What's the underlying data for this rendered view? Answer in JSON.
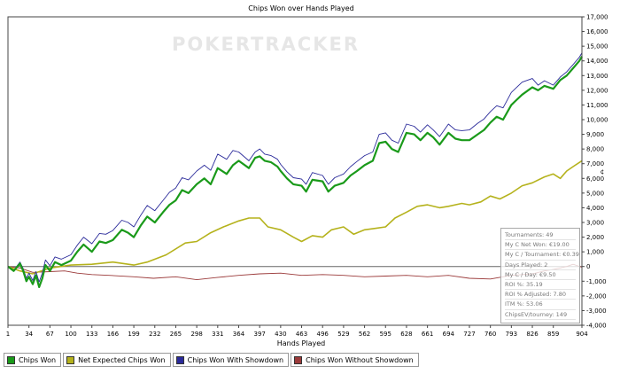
{
  "chart_data": {
    "type": "line",
    "title": "Chips Won over Hands Played",
    "xlabel": "Hands Played",
    "ylabel": "",
    "xlim": [
      1,
      904
    ],
    "ylim": [
      -4000,
      17000
    ],
    "x_ticks": [
      "1",
      "34",
      "67",
      "100",
      "133",
      "166",
      "199",
      "232",
      "265",
      "298",
      "331",
      "364",
      "397",
      "430",
      "463",
      "496",
      "529",
      "562",
      "595",
      "628",
      "661",
      "694",
      "727",
      "760",
      "793",
      "826",
      "859",
      "904"
    ],
    "y_ticks": [
      "-4,000",
      "-3,000",
      "-2,000",
      "-1,000",
      "0",
      "1,000",
      "2,000",
      "3,000",
      "4,000",
      "5,000",
      "6,000",
      "7,000",
      "8,000",
      "9,000",
      "10,000",
      "11,000",
      "12,000",
      "13,000",
      "14,000",
      "15,000",
      "16,000",
      "17,000"
    ],
    "y_tick_values": [
      -4000,
      -3000,
      -2000,
      -1000,
      0,
      1000,
      2000,
      3000,
      4000,
      5000,
      6000,
      7000,
      8000,
      9000,
      10000,
      11000,
      12000,
      13000,
      14000,
      15000,
      16000,
      17000
    ],
    "y_axis_symbol": "¢",
    "watermark": "POKERTRACKER",
    "legend_position": "bottom-left",
    "colors": {
      "chips_won": "#1a9a1a",
      "net_expected": "#b5b21c",
      "with_showdown": "#2a2a9a",
      "without_showdown": "#9b3a3a"
    },
    "series": [
      {
        "name": "Chips Won",
        "color": "#1a9a1a",
        "x": [
          1,
          10,
          20,
          25,
          30,
          34,
          40,
          45,
          50,
          55,
          60,
          67,
          75,
          85,
          100,
          110,
          120,
          133,
          145,
          155,
          166,
          180,
          190,
          199,
          210,
          220,
          232,
          245,
          255,
          265,
          275,
          285,
          298,
          310,
          320,
          331,
          345,
          355,
          364,
          380,
          390,
          397,
          405,
          415,
          425,
          430,
          440,
          450,
          463,
          470,
          480,
          496,
          505,
          515,
          529,
          540,
          550,
          562,
          575,
          585,
          595,
          605,
          615,
          628,
          640,
          650,
          661,
          670,
          680,
          694,
          705,
          715,
          727,
          740,
          750,
          760,
          770,
          780,
          793,
          800,
          810,
          826,
          835,
          845,
          859,
          870,
          880,
          890,
          900,
          904
        ],
        "values": [
          0,
          -300,
          200,
          -300,
          -1000,
          -700,
          -1200,
          -600,
          -1400,
          -800,
          100,
          -300,
          300,
          100,
          400,
          1000,
          1500,
          1000,
          1700,
          1600,
          1800,
          2500,
          2300,
          2000,
          2800,
          3400,
          3000,
          3700,
          4200,
          4500,
          5200,
          5000,
          5600,
          6000,
          5600,
          6700,
          6300,
          6900,
          7200,
          6700,
          7400,
          7500,
          7200,
          7100,
          6800,
          6500,
          6000,
          5600,
          5500,
          5100,
          5900,
          5800,
          5100,
          5500,
          5700,
          6200,
          6500,
          6900,
          7200,
          8400,
          8500,
          8000,
          7800,
          9100,
          9000,
          8600,
          9100,
          8800,
          8300,
          9100,
          8700,
          8600,
          8600,
          9000,
          9300,
          9800,
          10200,
          10000,
          11000,
          11300,
          11700,
          12200,
          12000,
          12300,
          12100,
          12700,
          13000,
          13500,
          14000,
          14300
        ]
      },
      {
        "name": "Net Expected Chips Won",
        "color": "#b5b21c",
        "x": [
          1,
          20,
          40,
          67,
          100,
          133,
          166,
          199,
          220,
          250,
          280,
          298,
          320,
          340,
          364,
          380,
          397,
          410,
          430,
          450,
          463,
          480,
          496,
          510,
          529,
          545,
          562,
          580,
          595,
          610,
          628,
          645,
          661,
          680,
          694,
          715,
          727,
          745,
          760,
          775,
          793,
          810,
          826,
          845,
          859,
          870,
          880,
          890,
          904
        ],
        "values": [
          0,
          -300,
          -500,
          -100,
          100,
          150,
          300,
          100,
          300,
          800,
          1600,
          1700,
          2300,
          2700,
          3100,
          3300,
          3300,
          2700,
          2500,
          2000,
          1700,
          2100,
          2000,
          2500,
          2700,
          2200,
          2500,
          2600,
          2700,
          3300,
          3700,
          4100,
          4200,
          4000,
          4100,
          4300,
          4200,
          4400,
          4800,
          4600,
          5000,
          5500,
          5700,
          6100,
          6300,
          6000,
          6500,
          6800,
          7200
        ]
      },
      {
        "name": "Chips Won With Showdown",
        "color": "#2a2a9a",
        "x": [
          1,
          10,
          20,
          25,
          30,
          34,
          40,
          45,
          50,
          55,
          60,
          67,
          75,
          85,
          100,
          110,
          120,
          133,
          145,
          155,
          166,
          180,
          190,
          199,
          210,
          220,
          232,
          245,
          255,
          265,
          275,
          285,
          298,
          310,
          320,
          331,
          345,
          355,
          364,
          380,
          390,
          397,
          405,
          415,
          425,
          430,
          440,
          450,
          463,
          470,
          480,
          496,
          505,
          515,
          529,
          540,
          550,
          562,
          575,
          585,
          595,
          605,
          615,
          628,
          640,
          650,
          661,
          670,
          680,
          694,
          705,
          715,
          727,
          740,
          750,
          760,
          770,
          780,
          793,
          800,
          810,
          826,
          835,
          845,
          859,
          870,
          880,
          890,
          900,
          904
        ],
        "values": [
          0,
          -250,
          300,
          -150,
          -800,
          -450,
          -950,
          -350,
          -1050,
          -450,
          450,
          50,
          650,
          500,
          800,
          1450,
          2000,
          1550,
          2250,
          2200,
          2450,
          3150,
          3000,
          2700,
          3500,
          4150,
          3800,
          4500,
          5050,
          5350,
          6050,
          5900,
          6500,
          6900,
          6550,
          7650,
          7300,
          7900,
          7800,
          7200,
          7800,
          8000,
          7650,
          7550,
          7300,
          6950,
          6450,
          6050,
          5950,
          5600,
          6400,
          6200,
          5600,
          6050,
          6300,
          6800,
          7150,
          7550,
          7800,
          9000,
          9100,
          8600,
          8400,
          9700,
          9550,
          9150,
          9650,
          9300,
          8850,
          9700,
          9300,
          9250,
          9300,
          9750,
          10050,
          10550,
          10950,
          10800,
          11850,
          12150,
          12550,
          12800,
          12350,
          12650,
          12350,
          12900,
          13250,
          13750,
          14250,
          14550
        ]
      },
      {
        "name": "Chips Won Without Showdown",
        "color": "#9b3a3a",
        "x": [
          1,
          20,
          40,
          67,
          90,
          110,
          133,
          160,
          199,
          230,
          265,
          298,
          330,
          364,
          397,
          430,
          463,
          496,
          529,
          562,
          595,
          628,
          661,
          694,
          727,
          760,
          780,
          793,
          810,
          826,
          845,
          859,
          870,
          880,
          890,
          904
        ],
        "values": [
          0,
          -100,
          -400,
          -350,
          -300,
          -450,
          -550,
          -600,
          -700,
          -800,
          -700,
          -900,
          -750,
          -600,
          -500,
          -450,
          -600,
          -550,
          -600,
          -700,
          -650,
          -600,
          -700,
          -600,
          -800,
          -850,
          -700,
          -600,
          -550,
          -500,
          -300,
          -200,
          -100,
          0,
          150,
          -50
        ]
      }
    ]
  },
  "legend": {
    "items": [
      {
        "label": "Chips Won",
        "color": "#1a9a1a"
      },
      {
        "label": "Net Expected Chips Won",
        "color": "#b5b21c"
      },
      {
        "label": "Chips Won With Showdown",
        "color": "#2a2a9a"
      },
      {
        "label": "Chips Won Without Showdown",
        "color": "#9b3a3a"
      }
    ]
  },
  "info_box": {
    "lines": [
      "Tournaments: 49",
      "My C Net Won: €19.00",
      "My C / Tournament: €0.39",
      "Days Played: 2",
      "My C / Day: €9.50",
      "ROI %: 35.19",
      "ROI % Adjusted: 7.80",
      "ITM %: 53.06",
      "ChipsEV/tourney: 149"
    ]
  }
}
